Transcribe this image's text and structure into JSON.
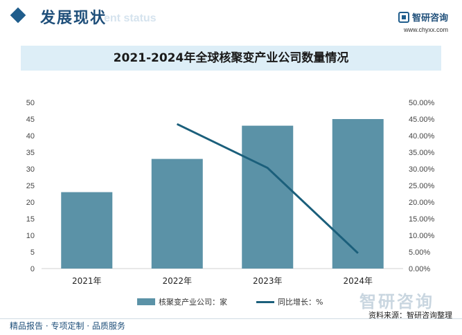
{
  "header": {
    "section_title": "发展现状",
    "section_subtitle": "ent status",
    "brand_name": "智研咨询",
    "brand_url": "www.chyxx.com"
  },
  "chart_data": {
    "type": "bar",
    "title": "2021-2024年全球核聚变产业公司数量情况",
    "categories": [
      "2021年",
      "2022年",
      "2023年",
      "2024年"
    ],
    "series": [
      {
        "name": "核聚变产业公司：家",
        "type": "bar",
        "axis": "left",
        "color": "#5b92a7",
        "values": [
          23,
          33,
          43,
          45
        ]
      },
      {
        "name": "同比增长：%",
        "type": "line",
        "axis": "right",
        "color": "#1b5f7b",
        "values": [
          null,
          43.48,
          30.3,
          4.65
        ]
      }
    ],
    "ylim": [
      0,
      50
    ],
    "y_ticks": [
      "0",
      "5",
      "10",
      "15",
      "20",
      "25",
      "30",
      "35",
      "40",
      "45",
      "50"
    ],
    "y2lim": [
      0,
      50
    ],
    "y2_ticks": [
      "0.00%",
      "5.00%",
      "10.00%",
      "15.00%",
      "20.00%",
      "25.00%",
      "30.00%",
      "35.00%",
      "40.00%",
      "45.00%",
      "50.00%"
    ],
    "grid": false,
    "legend_position": "bottom"
  },
  "legend": {
    "bar_label": "核聚变产业公司：家",
    "line_label": "同比增长：%"
  },
  "watermark": {
    "text": "智研咨询"
  },
  "source": "资料来源：智研咨询整理",
  "footer": "精品报告 · 专项定制 · 品质服务"
}
